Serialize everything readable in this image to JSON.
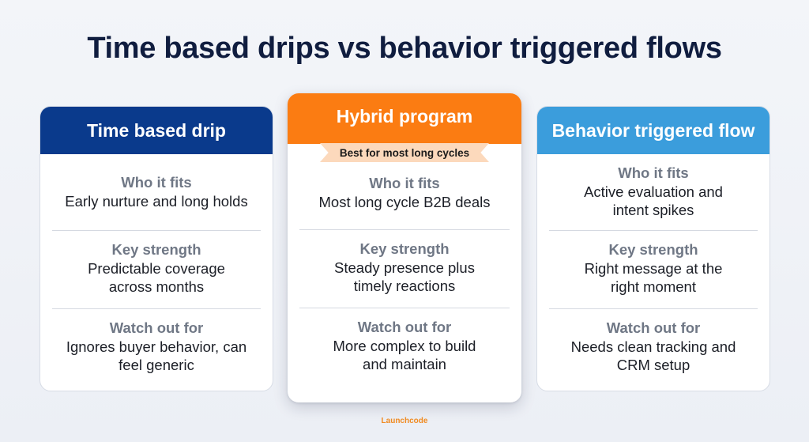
{
  "title": "Time based drips vs behavior triggered flows",
  "columns": {
    "left": {
      "header": "Time based drip",
      "who_label": "Who it fits",
      "who_text": "Early nurture and long holds",
      "strength_label": "Key strength",
      "strength_text": "Predictable coverage across months",
      "watch_label": "Watch out for",
      "watch_text": "Ignores buyer behavior, can feel generic"
    },
    "middle": {
      "header": "Hybrid program",
      "ribbon": "Best for most long cycles",
      "who_label": "Who it fits",
      "who_text": "Most long cycle B2B deals",
      "strength_label": "Key strength",
      "strength_text": "Steady presence plus timely reactions",
      "watch_label": "Watch out for",
      "watch_text": "More complex to build and maintain"
    },
    "right": {
      "header": "Behavior triggered flow",
      "who_label": "Who it fits",
      "who_text": "Active evaluation and intent spikes",
      "strength_label": "Key strength",
      "strength_text": "Right message at the right moment",
      "watch_label": "Watch out for",
      "watch_text": "Needs clean tracking and CRM setup"
    }
  },
  "brand": "Launchcode",
  "colors": {
    "title": "#101d3f",
    "left_header": "#0a3a8c",
    "middle_header": "#fb7c12",
    "right_header": "#3b9ddc",
    "ribbon": "#fcd9bc"
  }
}
